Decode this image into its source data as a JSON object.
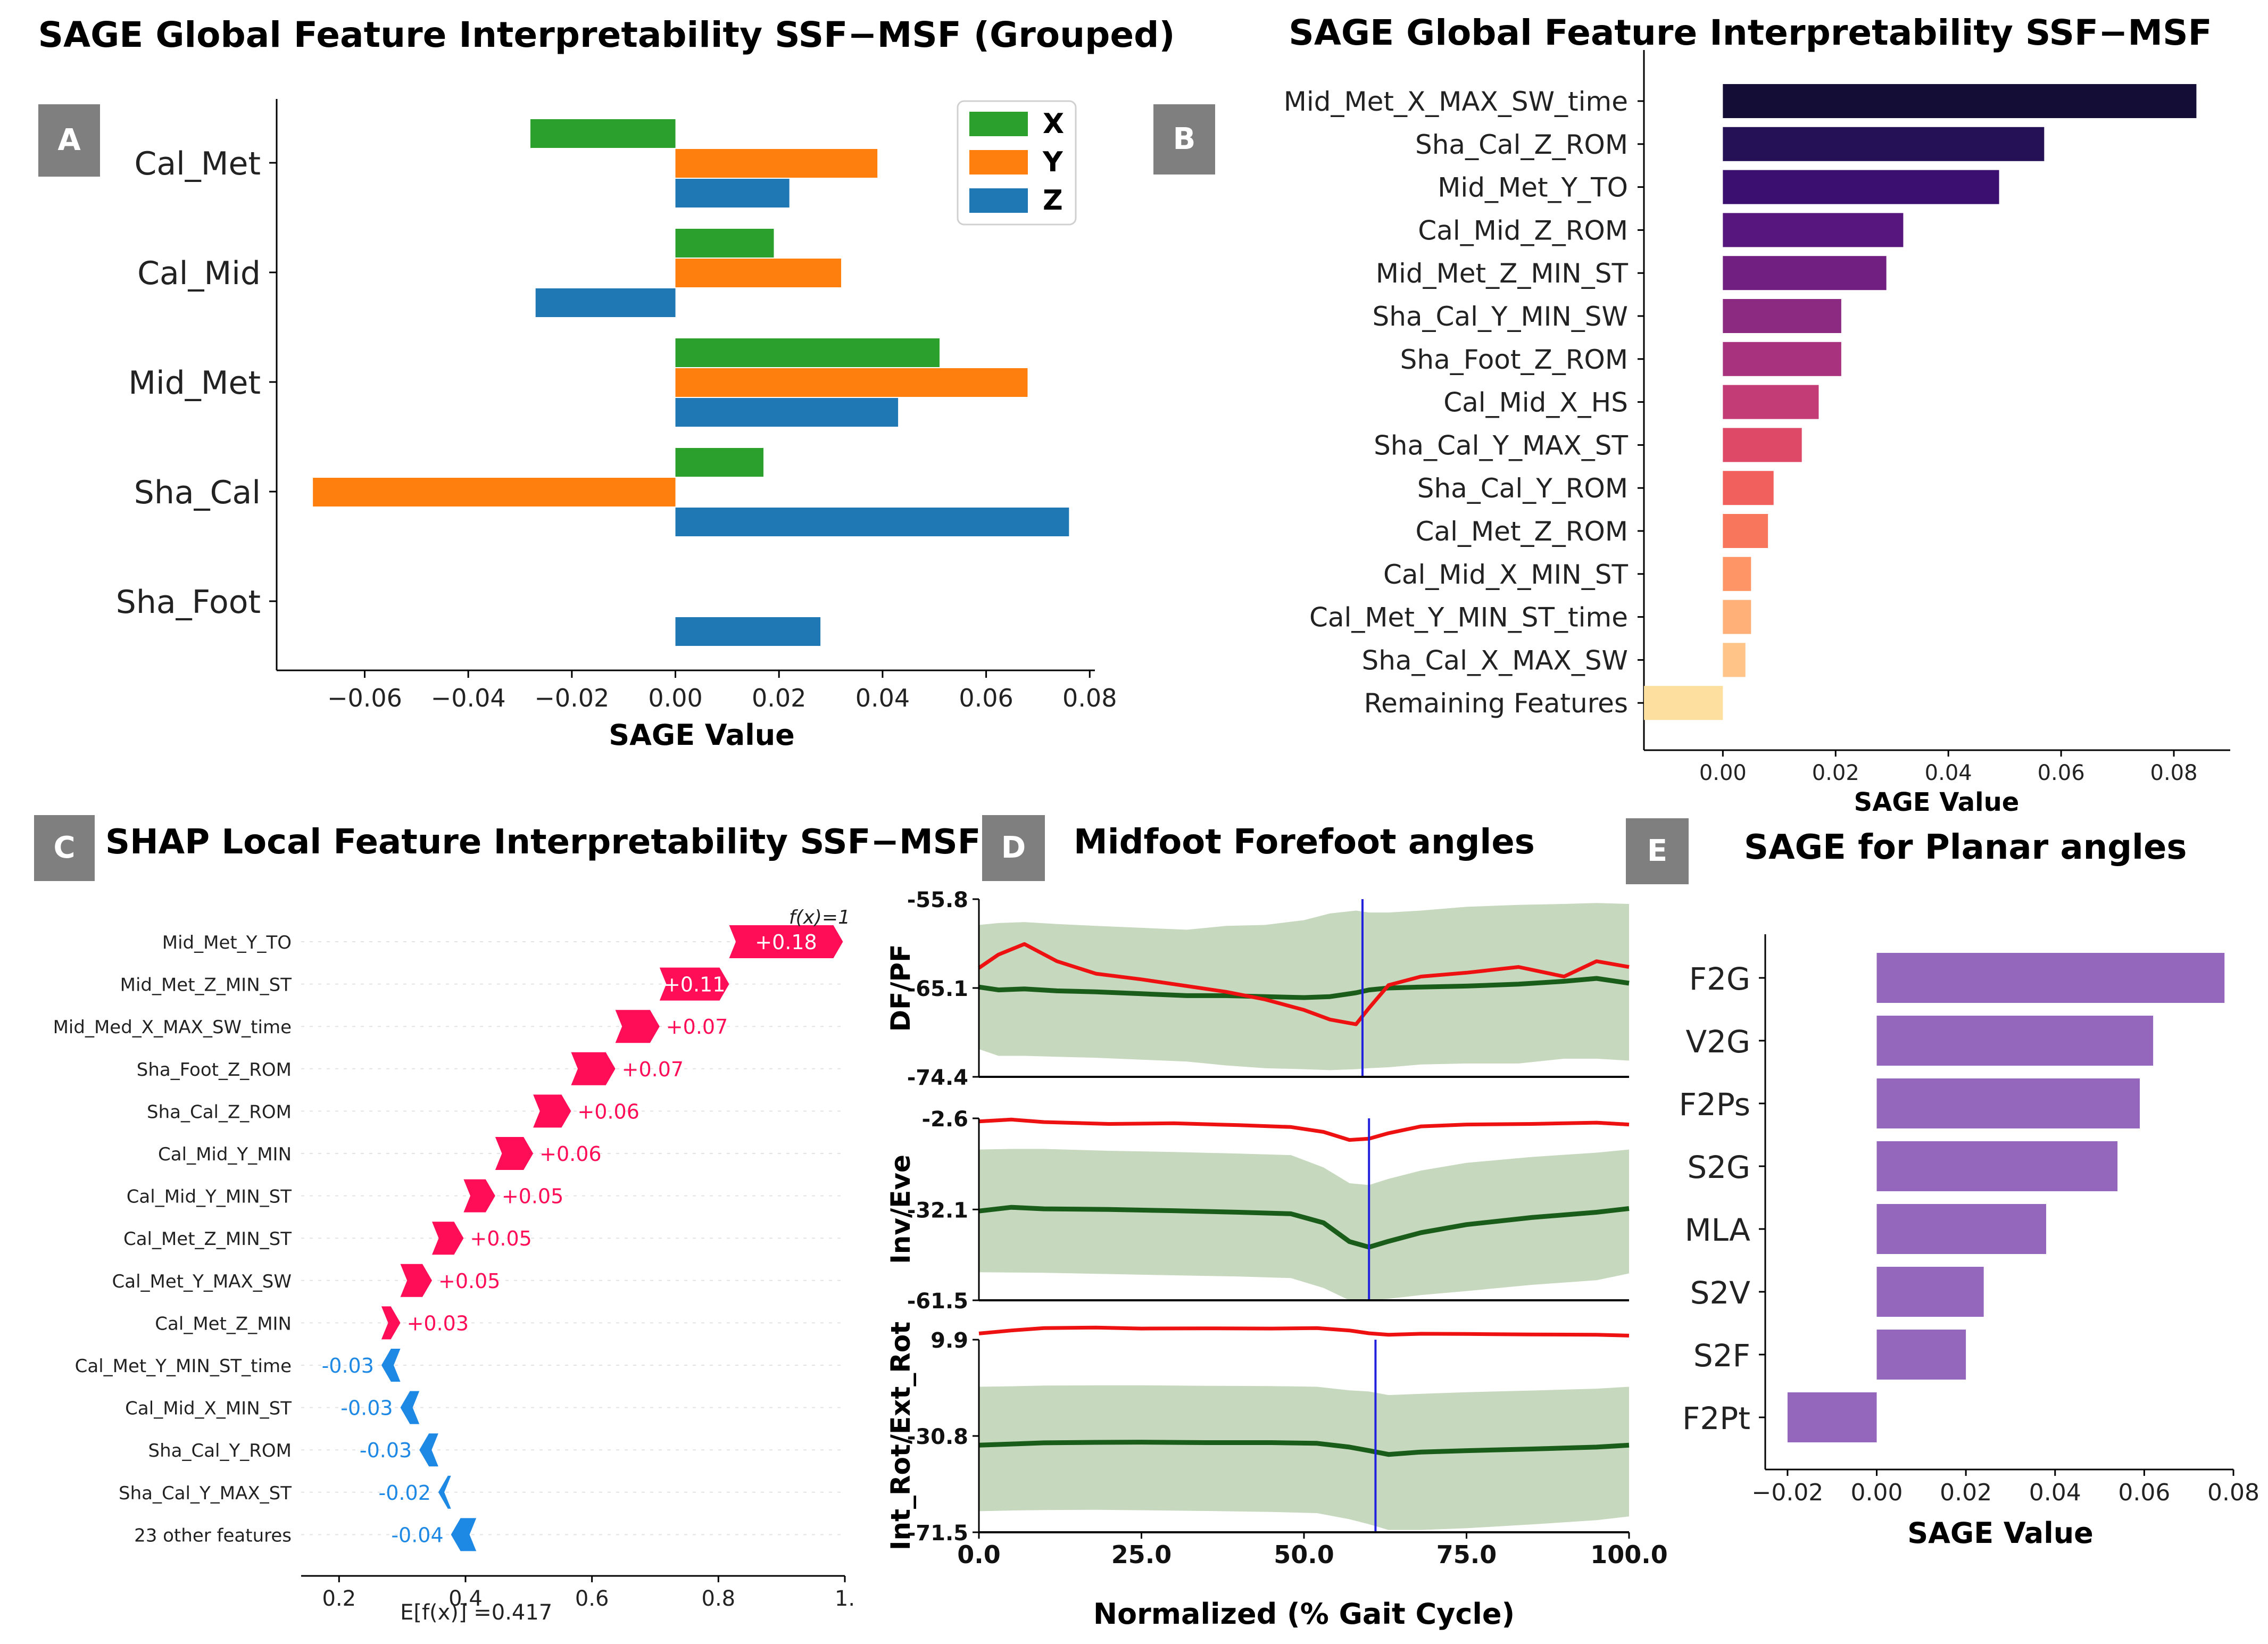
{
  "panelA": {
    "tag": "A",
    "chart_data": {
      "type": "bar",
      "orientation": "horizontal-grouped",
      "title": "SAGE Global Feature Interpretability SSF−MSF (Grouped)",
      "xlabel": "SAGE Value",
      "categories": [
        "Cal_Met",
        "Cal_Mid",
        "Mid_Met",
        "Sha_Cal",
        "Sha_Foot"
      ],
      "series": [
        {
          "name": "X",
          "color": "#2ca02c",
          "values": [
            -0.028,
            0.019,
            0.051,
            0.017,
            0.0
          ]
        },
        {
          "name": "Y",
          "color": "#ff7f0e",
          "values": [
            0.039,
            0.032,
            0.068,
            -0.07,
            0.0
          ]
        },
        {
          "name": "Z",
          "color": "#1f77b4",
          "values": [
            0.022,
            -0.027,
            0.043,
            0.076,
            0.028
          ]
        }
      ],
      "xlim": [
        -0.077,
        0.081
      ],
      "xticks": [
        -0.06,
        -0.04,
        -0.02,
        0.0,
        0.02,
        0.04,
        0.06,
        0.08
      ],
      "xtick_labels": [
        "−0.06",
        "−0.04",
        "−0.02",
        "0.00",
        "0.02",
        "0.04",
        "0.06",
        "0.08"
      ],
      "legend": "top-right"
    }
  },
  "panelB": {
    "tag": "B",
    "chart_data": {
      "type": "bar",
      "orientation": "horizontal",
      "title": "SAGE Global Feature Interpretability SSF−MSF",
      "xlabel": "SAGE Value",
      "categories": [
        "Mid_Met_X_MAX_SW_time",
        "Sha_Cal_Z_ROM",
        "Mid_Met_Y_TO",
        "Cal_Mid_Z_ROM",
        "Mid_Met_Z_MIN_ST",
        "Sha_Cal_Y_MIN_SW",
        "Sha_Foot_Z_ROM",
        "Cal_Mid_X_HS",
        "Sha_Cal_Y_MAX_ST",
        "Sha_Cal_Y_ROM",
        "Cal_Met_Z_ROM",
        "Cal_Mid_X_MIN_ST",
        "Cal_Met_Y_MIN_ST_time",
        "Sha_Cal_X_MAX_SW",
        "Remaining Features"
      ],
      "values": [
        0.084,
        0.057,
        0.049,
        0.032,
        0.029,
        0.021,
        0.021,
        0.017,
        0.014,
        0.009,
        0.008,
        0.005,
        0.005,
        0.004,
        -0.014
      ],
      "colors": [
        "#140e36",
        "#251156",
        "#3b0f70",
        "#57157e",
        "#711f81",
        "#8c2981",
        "#a8327d",
        "#c43c75",
        "#de4968",
        "#f1605d",
        "#f8765c",
        "#fd9567",
        "#feb078",
        "#fec488",
        "#fde0a0"
      ],
      "xlim": [
        -0.014,
        0.09
      ],
      "xticks": [
        0.0,
        0.02,
        0.04,
        0.06,
        0.08
      ],
      "xtick_labels": [
        "0.00",
        "0.02",
        "0.04",
        "0.06",
        "0.08"
      ]
    }
  },
  "panelC": {
    "tag": "C",
    "chart_data": {
      "type": "bar",
      "orientation": "waterfall",
      "title": "SHAP Local Feature Interpretability SSF−MSF",
      "fx_label": "f(x)=1",
      "base_label": "E[f(x)] =0.417",
      "base_value": 0.417,
      "categories": [
        "Mid_Met_Y_TO",
        "Mid_Met_Z_MIN_ST",
        "Mid_Med_X_MAX_SW_time",
        "Sha_Foot_Z_ROM",
        "Sha_Cal_Z_ROM",
        "Cal_Mid_Y_MIN",
        "Cal_Mid_Y_MIN_ST",
        "Cal_Met_Z_MIN_ST",
        "Cal_Met_Y_MAX_SW",
        "Cal_Met_Z_MIN",
        "Cal_Met_Y_MIN_ST_time",
        "Cal_Mid_X_MIN_ST",
        "Sha_Cal_Y_ROM",
        "Sha_Cal_Y_MAX_ST",
        "23 other features"
      ],
      "values": [
        0.18,
        0.11,
        0.07,
        0.07,
        0.06,
        0.06,
        0.05,
        0.05,
        0.05,
        0.03,
        -0.03,
        -0.03,
        -0.03,
        -0.02,
        -0.04
      ],
      "value_labels": [
        "+0.18",
        "+0.11",
        "+0.07",
        "+0.07",
        "+0.06",
        "+0.06",
        "+0.05",
        "+0.05",
        "+0.05",
        "+0.03",
        "-0.03",
        "-0.03",
        "-0.03",
        "-0.02",
        "-0.04"
      ],
      "xlim": [
        0.14,
        1.0
      ],
      "xticks": [
        0.2,
        0.4,
        0.6,
        0.8,
        1.0
      ],
      "xtick_labels": [
        "0.2",
        "0.4",
        "0.6",
        "0.8",
        "1."
      ],
      "positive_color": "#ff0d57",
      "negative_color": "#1e88e5"
    }
  },
  "panelD": {
    "tag": "D",
    "chart_data": {
      "type": "line",
      "title": "Midfoot Forefoot angles",
      "xlabel": "Normalized (% Gait Cycle)",
      "xlim": [
        0,
        100
      ],
      "xticks": [
        0,
        25,
        50,
        75,
        100
      ],
      "xtick_labels": [
        "0.0",
        "25.0",
        "50.0",
        "75.0",
        "100.0"
      ],
      "subplots": [
        {
          "ylabel": "DF/PF",
          "ylim": [
            -74.4,
            -55.8
          ],
          "ytick_labels": [
            "-55.8",
            "-65.1",
            "-74.4"
          ],
          "yticks": [
            -55.8,
            -65.1,
            -74.4
          ],
          "marker_x": 59,
          "x": [
            0,
            3,
            7,
            12,
            18,
            25,
            32,
            38,
            44,
            50,
            54,
            58,
            60,
            63,
            68,
            75,
            83,
            90,
            95,
            100
          ],
          "red": [
            -63.0,
            -61.6,
            -60.5,
            -62.3,
            -63.6,
            -64.2,
            -64.9,
            -65.5,
            -66.3,
            -67.4,
            -68.4,
            -68.9,
            -67.2,
            -64.8,
            -63.9,
            -63.5,
            -62.9,
            -63.9,
            -62.3,
            -62.9
          ],
          "green": [
            -65.0,
            -65.3,
            -65.2,
            -65.4,
            -65.5,
            -65.7,
            -65.9,
            -65.9,
            -66.0,
            -66.1,
            -66.0,
            -65.6,
            -65.3,
            -65.1,
            -65.0,
            -64.9,
            -64.7,
            -64.4,
            -64.1,
            -64.6
          ],
          "band_upper": [
            -58.5,
            -58.3,
            -58.2,
            -58.4,
            -58.6,
            -58.8,
            -59.0,
            -58.6,
            -58.5,
            -58.0,
            -57.3,
            -57.0,
            -57.2,
            -57.2,
            -57.0,
            -56.6,
            -56.4,
            -56.3,
            -56.2,
            -56.3
          ],
          "band_lower": [
            -71.5,
            -72.2,
            -72.2,
            -72.3,
            -72.4,
            -72.6,
            -72.8,
            -73.2,
            -73.5,
            -73.6,
            -73.7,
            -73.6,
            -73.5,
            -73.4,
            -73.1,
            -73.0,
            -73.0,
            -72.5,
            -72.5,
            -72.7
          ]
        },
        {
          "ylabel": "Inv/Eve",
          "ylim": [
            -61.5,
            -2.6
          ],
          "ytick_labels": [
            "-2.6",
            "-32.1",
            "-61.5"
          ],
          "yticks": [
            -2.6,
            -32.1,
            -61.5
          ],
          "marker_x": 60,
          "x": [
            0,
            5,
            10,
            20,
            30,
            40,
            48,
            53,
            57,
            60,
            63,
            68,
            75,
            85,
            95,
            100
          ],
          "red": [
            -3.6,
            -3.0,
            -3.8,
            -4.4,
            -4.2,
            -4.8,
            -5.4,
            -7.0,
            -9.6,
            -9.2,
            -7.4,
            -5.2,
            -4.6,
            -4.4,
            -4.0,
            -4.6
          ],
          "green": [
            -32.6,
            -31.4,
            -31.9,
            -32.1,
            -32.5,
            -33.0,
            -33.5,
            -36.4,
            -42.5,
            -44.3,
            -42.4,
            -39.6,
            -37.0,
            -34.7,
            -33.0,
            -31.8
          ],
          "band_upper": [
            -12.7,
            -12.5,
            -12.5,
            -13.1,
            -13.5,
            -14.0,
            -14.5,
            -18.5,
            -23.6,
            -24.2,
            -22.2,
            -19.5,
            -17.0,
            -15.1,
            -13.7,
            -12.7
          ],
          "band_lower": [
            -52.4,
            -52.5,
            -52.6,
            -53.0,
            -53.4,
            -53.8,
            -54.3,
            -57.5,
            -61.5,
            -61.5,
            -61.0,
            -59.8,
            -58.5,
            -56.5,
            -55.0,
            -52.8
          ]
        },
        {
          "ylabel": "Int_Rot/Ext_Rot",
          "ylim": [
            -71.5,
            9.9
          ],
          "ytick_labels": [
            "9.9",
            "-30.8",
            "-71.5"
          ],
          "yticks": [
            9.9,
            -30.8,
            -71.5
          ],
          "marker_x": 61,
          "x": [
            0,
            5,
            10,
            18,
            25,
            35,
            45,
            52,
            57,
            60,
            63,
            68,
            75,
            85,
            95,
            100
          ],
          "red": [
            12.5,
            13.8,
            14.8,
            15.0,
            14.6,
            14.7,
            14.6,
            14.8,
            13.8,
            12.6,
            12.0,
            12.4,
            12.3,
            12.1,
            12.0,
            11.6
          ],
          "green": [
            -34.7,
            -34.2,
            -33.7,
            -33.5,
            -33.4,
            -33.6,
            -33.6,
            -33.9,
            -35.5,
            -37.0,
            -38.6,
            -37.6,
            -37.0,
            -36.3,
            -35.5,
            -34.7
          ],
          "band_upper": [
            -10.0,
            -9.8,
            -9.5,
            -9.4,
            -9.4,
            -9.6,
            -9.7,
            -10.0,
            -11.5,
            -12.0,
            -13.5,
            -13.0,
            -12.3,
            -11.6,
            -10.8,
            -10.0
          ],
          "band_lower": [
            -62.6,
            -62.3,
            -62.1,
            -62.0,
            -62.2,
            -62.5,
            -62.9,
            -63.4,
            -66.0,
            -68.1,
            -70.5,
            -70.5,
            -69.8,
            -68.2,
            -66.4,
            -64.8
          ]
        }
      ]
    }
  },
  "panelE": {
    "tag": "E",
    "chart_data": {
      "type": "bar",
      "orientation": "horizontal",
      "title": "SAGE for Planar angles",
      "xlabel": "SAGE Value",
      "categories": [
        "F2G",
        "V2G",
        "F2Ps",
        "S2G",
        "MLA",
        "S2V",
        "S2F",
        "F2Pt"
      ],
      "values": [
        0.078,
        0.062,
        0.059,
        0.054,
        0.038,
        0.024,
        0.02,
        -0.02
      ],
      "color": "#9467bd",
      "xlim": [
        -0.025,
        0.08
      ],
      "xticks": [
        -0.02,
        0.0,
        0.02,
        0.04,
        0.06,
        0.08
      ],
      "xtick_labels": [
        "−0.02",
        "0.00",
        "0.02",
        "0.04",
        "0.06",
        "0.08"
      ]
    }
  }
}
